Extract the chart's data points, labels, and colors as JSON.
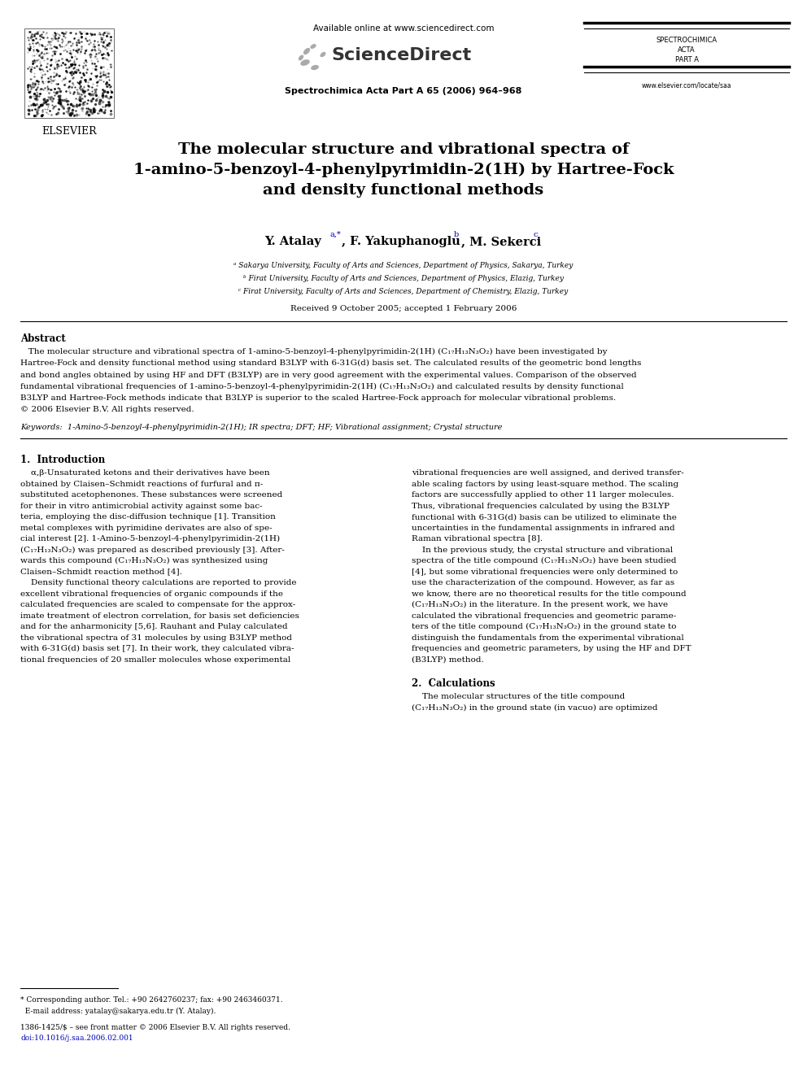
{
  "bg_color": "#ffffff",
  "page_width": 9.92,
  "page_height": 13.23,
  "dpi": 100,
  "title": "The molecular structure and vibrational spectra of\n1-amino-5-benzoyl-4-phenylpyrimidin-2(1H) by Hartree-Fock\nand density functional methods",
  "affil1": "ᵃ Sakarya University, Faculty of Arts and Sciences, Department of Physics, Sakarya, Turkey",
  "affil2": "ᵇ Firat University, Faculty of Arts and Sciences, Department of Physics, Elazig, Turkey",
  "affil3": "ᶜ Firat University, Faculty of Arts and Sciences, Department of Chemistry, Elazig, Turkey",
  "received": "Received 9 October 2005; accepted 1 February 2006",
  "abs_lines": [
    "   The molecular structure and vibrational spectra of 1-amino-5-benzoyl-4-phenylpyrimidin-2(1H) (C₁₇H₁₃N₃O₂) have been investigated by",
    "Hartree-Fock and density functional method using standard B3LYP with 6-31G(d) basis set. The calculated results of the geometric bond lengths",
    "and bond angles obtained by using HF and DFT (B3LYP) are in very good agreement with the experimental values. Comparison of the observed",
    "fundamental vibrational frequencies of 1-amino-5-benzoyl-4-phenylpyrimidin-2(1H) (C₁₇H₁₃N₃O₂) and calculated results by density functional",
    "B3LYP and Hartree-Fock methods indicate that B3LYP is superior to the scaled Hartree-Fock approach for molecular vibrational problems.",
    "© 2006 Elsevier B.V. All rights reserved."
  ],
  "kw_line": "Keywords:  1-Amino-5-benzoyl-4-phenylpyrimidin-2(1H); IR spectra; DFT; HF; Vibrational assignment; Crystal structure",
  "intro_col1_lines": [
    "    α,β-Unsaturated ketons and their derivatives have been",
    "obtained by Claisen–Schmidt reactions of furfural and π-",
    "substituted acetophenones. These substances were screened",
    "for their in vitro antimicrobial activity against some bac-",
    "teria, employing the disc-diffusion technique [1]. Transition",
    "metal complexes with pyrimidine derivates are also of spe-",
    "cial interest [2]. 1-Amino-5-benzoyl-4-phenylpyrimidin-2(1H)",
    "(C₁₇H₁₃N₃O₂) was prepared as described previously [3]. After-",
    "wards this compound (C₁₇H₁₃N₃O₂) was synthesized using",
    "Claisen–Schmidt reaction method [4].",
    "    Density functional theory calculations are reported to provide",
    "excellent vibrational frequencies of organic compounds if the",
    "calculated frequencies are scaled to compensate for the approx-",
    "imate treatment of electron correlation, for basis set deficiencies",
    "and for the anharmonicity [5,6]. Rauhant and Pulay calculated",
    "the vibrational spectra of 31 molecules by using B3LYP method",
    "with 6-31G(d) basis set [7]. In their work, they calculated vibra-",
    "tional frequencies of 20 smaller molecules whose experimental"
  ],
  "intro_col2_lines": [
    "vibrational frequencies are well assigned, and derived transfer-",
    "able scaling factors by using least-square method. The scaling",
    "factors are successfully applied to other 11 larger molecules.",
    "Thus, vibrational frequencies calculated by using the B3LYP",
    "functional with 6-31G(d) basis can be utilized to eliminate the",
    "uncertainties in the fundamental assignments in infrared and",
    "Raman vibrational spectra [8].",
    "    In the previous study, the crystal structure and vibrational",
    "spectra of the title compound (C₁₇H₁₃N₃O₂) have been studied",
    "[4], but some vibrational frequencies were only determined to",
    "use the characterization of the compound. However, as far as",
    "we know, there are no theoretical results for the title compound",
    "(C₁₇H₁₃N₃O₂) in the literature. In the present work, we have",
    "calculated the vibrational frequencies and geometric parame-",
    "ters of the title compound (C₁₇H₁₃N₃O₂) in the ground state to",
    "distinguish the fundamentals from the experimental vibrational",
    "frequencies and geometric parameters, by using the HF and DFT",
    "(B3LYP) method."
  ],
  "calc_col2_lines": [
    "    The molecular structures of the title compound",
    "(C₁₇H₁₃N₃O₂) in the ground state (in vacuo) are optimized"
  ],
  "fn1": "* Corresponding author. Tel.: +90 2642760237; fax: +90 2463460371.",
  "fn2": "  E-mail address: yatalay@sakarya.edu.tr (Y. Atalay).",
  "fn3": "1386-1425/$ – see front matter © 2006 Elsevier B.V. All rights reserved.",
  "fn4": "doi:10.1016/j.saa.2006.02.001",
  "link_color": "#0000bb",
  "text_color": "#000000"
}
